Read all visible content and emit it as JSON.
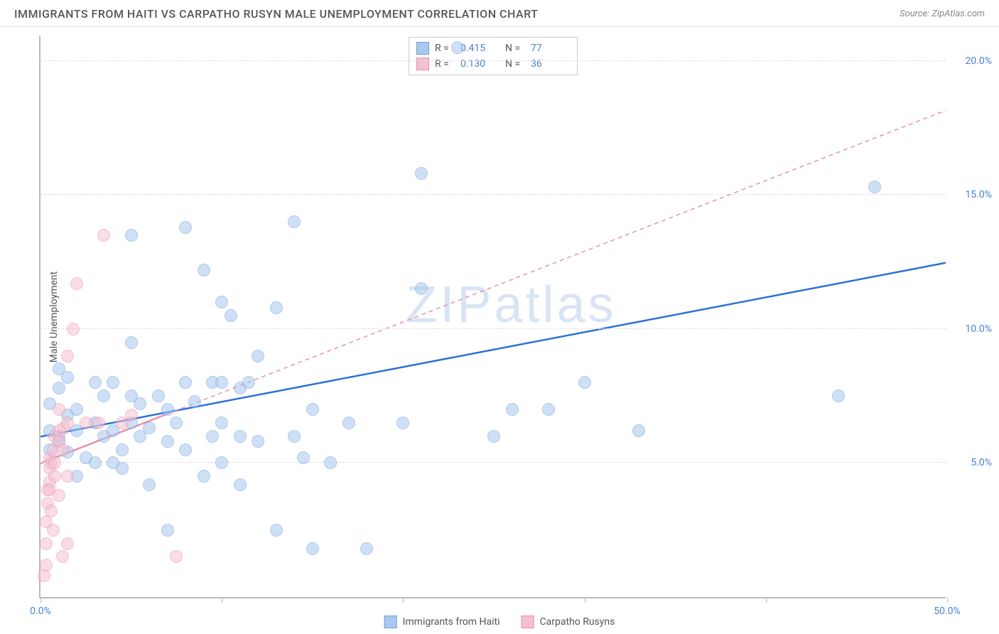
{
  "header": {
    "title": "IMMIGRANTS FROM HAITI VS CARPATHO RUSYN MALE UNEMPLOYMENT CORRELATION CHART",
    "source": "Source: ZipAtlas.com"
  },
  "chart": {
    "type": "scatter",
    "ylabel": "Male Unemployment",
    "xlim": [
      0,
      50
    ],
    "ylim": [
      0,
      21
    ],
    "xtick_positions": [
      0,
      10,
      20,
      30,
      40,
      50
    ],
    "xtick_labels": {
      "0": "0.0%",
      "50": "50.0%"
    },
    "ytick_positions": [
      5,
      10,
      15,
      20
    ],
    "ytick_labels": [
      "5.0%",
      "10.0%",
      "15.0%",
      "20.0%"
    ],
    "grid_color": "#dddddd",
    "axis_color": "#bbbbbb",
    "background_color": "#ffffff",
    "marker_radius": 9,
    "marker_opacity": 0.55,
    "series": [
      {
        "name": "Immigrants from Haiti",
        "fill": "#a8c8f0",
        "stroke": "#6f9ed8",
        "line_color": "#2b6fd8",
        "line_dash": "none",
        "line_width": 2.5,
        "r": 0.415,
        "n": 77,
        "trend": {
          "x1": 0,
          "y1": 6.0,
          "x2": 50,
          "y2": 12.5
        },
        "points": [
          [
            0.5,
            6.2
          ],
          [
            0.5,
            5.5
          ],
          [
            0.5,
            7.2
          ],
          [
            1,
            7.8
          ],
          [
            1,
            6.0
          ],
          [
            1,
            8.5
          ],
          [
            1,
            5.8
          ],
          [
            1.5,
            8.2
          ],
          [
            1.5,
            6.8
          ],
          [
            1.5,
            5.4
          ],
          [
            2,
            6.2
          ],
          [
            2,
            4.5
          ],
          [
            2,
            7.0
          ],
          [
            2.5,
            5.2
          ],
          [
            3,
            8.0
          ],
          [
            3,
            6.5
          ],
          [
            3,
            5.0
          ],
          [
            3.5,
            7.5
          ],
          [
            3.5,
            6.0
          ],
          [
            4,
            5.0
          ],
          [
            4,
            8.0
          ],
          [
            4,
            6.2
          ],
          [
            4.5,
            5.5
          ],
          [
            4.5,
            4.8
          ],
          [
            5,
            9.5
          ],
          [
            5,
            7.5
          ],
          [
            5,
            13.5
          ],
          [
            5,
            6.5
          ],
          [
            5.5,
            6.0
          ],
          [
            5.5,
            7.2
          ],
          [
            6,
            4.2
          ],
          [
            6,
            6.3
          ],
          [
            6.5,
            7.5
          ],
          [
            7,
            5.8
          ],
          [
            7,
            7.0
          ],
          [
            7,
            2.5
          ],
          [
            7.5,
            6.5
          ],
          [
            8,
            13.8
          ],
          [
            8,
            8.0
          ],
          [
            8,
            5.5
          ],
          [
            8.5,
            7.3
          ],
          [
            9,
            12.2
          ],
          [
            9,
            4.5
          ],
          [
            9.5,
            8.0
          ],
          [
            9.5,
            6.0
          ],
          [
            10,
            8.0
          ],
          [
            10,
            6.5
          ],
          [
            10,
            11.0
          ],
          [
            10,
            5.0
          ],
          [
            10.5,
            10.5
          ],
          [
            11,
            7.8
          ],
          [
            11,
            6.0
          ],
          [
            11,
            4.2
          ],
          [
            11.5,
            8.0
          ],
          [
            12,
            5.8
          ],
          [
            12,
            9.0
          ],
          [
            13,
            2.5
          ],
          [
            13,
            10.8
          ],
          [
            14,
            14.0
          ],
          [
            14,
            6.0
          ],
          [
            14.5,
            5.2
          ],
          [
            15,
            1.8
          ],
          [
            15,
            7.0
          ],
          [
            16,
            5.0
          ],
          [
            17,
            6.5
          ],
          [
            18,
            1.8
          ],
          [
            20,
            6.5
          ],
          [
            21,
            15.8
          ],
          [
            21,
            11.5
          ],
          [
            23,
            20.5
          ],
          [
            25,
            6.0
          ],
          [
            26,
            7.0
          ],
          [
            28,
            7.0
          ],
          [
            30,
            8.0
          ],
          [
            33,
            6.2
          ],
          [
            44,
            7.5
          ],
          [
            46,
            15.3
          ]
        ]
      },
      {
        "name": "Carpatho Rusyns",
        "fill": "#f5c0d0",
        "stroke": "#e88fae",
        "line_color": "#e88fae",
        "line_dash": "6,5",
        "line_width": 1.5,
        "r": 0.13,
        "n": 36,
        "trend": {
          "x1": 0,
          "y1": 5.0,
          "x2": 50,
          "y2": 18.2
        },
        "trend_solid_until": 7,
        "points": [
          [
            0.2,
            0.8
          ],
          [
            0.3,
            1.2
          ],
          [
            0.3,
            2.0
          ],
          [
            0.3,
            2.8
          ],
          [
            0.4,
            3.5
          ],
          [
            0.4,
            4.0
          ],
          [
            0.5,
            4.3
          ],
          [
            0.5,
            4.8
          ],
          [
            0.5,
            4.0
          ],
          [
            0.5,
            5.2
          ],
          [
            0.6,
            3.2
          ],
          [
            0.6,
            5.0
          ],
          [
            0.7,
            2.5
          ],
          [
            0.7,
            5.5
          ],
          [
            0.8,
            6.0
          ],
          [
            0.8,
            4.5
          ],
          [
            0.8,
            5.0
          ],
          [
            1.0,
            6.2
          ],
          [
            1.0,
            5.8
          ],
          [
            1.0,
            3.8
          ],
          [
            1.0,
            7.0
          ],
          [
            1.2,
            1.5
          ],
          [
            1.2,
            5.5
          ],
          [
            1.3,
            6.3
          ],
          [
            1.5,
            4.5
          ],
          [
            1.5,
            6.5
          ],
          [
            1.5,
            2.0
          ],
          [
            1.5,
            9.0
          ],
          [
            1.8,
            10.0
          ],
          [
            2.0,
            11.7
          ],
          [
            2.5,
            6.5
          ],
          [
            3.2,
            6.5
          ],
          [
            3.5,
            13.5
          ],
          [
            4.5,
            6.5
          ],
          [
            5.0,
            6.8
          ],
          [
            7.5,
            1.5
          ]
        ]
      }
    ]
  },
  "watermark": "ZIPatlas",
  "legend_bottom": [
    {
      "label": "Immigrants from Haiti",
      "fill": "#a8c8f0",
      "stroke": "#6f9ed8"
    },
    {
      "label": "Carpatho Rusyns",
      "fill": "#f5c0d0",
      "stroke": "#e88fae"
    }
  ]
}
